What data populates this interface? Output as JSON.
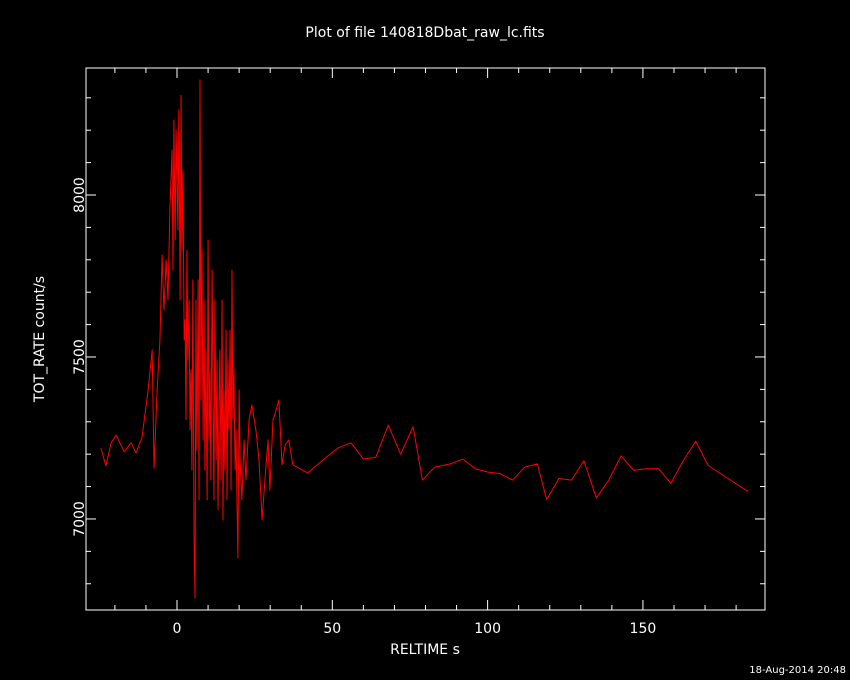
{
  "chart_data": {
    "type": "line",
    "title": "Plot of file 140818Dbat_raw_lc.fits",
    "x_label": "RELTIME  s",
    "y_label": "TOT_RATE  count/s",
    "timestamp": "18-Aug-2014 20:48",
    "xlim": [
      -29.3,
      189.3
    ],
    "ylim": [
      6719,
      8392
    ],
    "xticks": [
      0,
      50,
      100,
      150
    ],
    "yticks": [
      7000,
      7500,
      8000
    ],
    "xminor": [
      -20,
      -10,
      10,
      20,
      30,
      40,
      60,
      70,
      80,
      90,
      110,
      120,
      130,
      140,
      160,
      170,
      180
    ],
    "yminor": [
      6800,
      6900,
      7100,
      7200,
      7300,
      7400,
      7600,
      7700,
      7800,
      7900,
      8100,
      8200,
      8300
    ],
    "series": [
      {
        "name": "TOT_RATE",
        "color": "#ff0000",
        "x": [
          -24.5,
          -22.9,
          -21.2,
          -19.6,
          -17,
          -14.8,
          -13.2,
          -11.3,
          -9.3,
          -8,
          -7.4,
          -6.4,
          -5.5,
          -4.8,
          -4.2,
          -3.5,
          -2.9,
          -2.3,
          -1.6,
          -1.3,
          -1,
          -0.6,
          -0.3,
          0.3,
          0.6,
          1,
          1.3,
          1.6,
          1.9,
          2.3,
          2.6,
          2.9,
          3.2,
          3.5,
          3.9,
          4.2,
          4.5,
          4.8,
          5.1,
          5.5,
          5.8,
          6.1,
          6.4,
          6.8,
          7.1,
          7.4,
          7.7,
          8,
          8.4,
          8.7,
          9,
          9.3,
          9.7,
          10,
          10.3,
          10.6,
          10.9,
          11.3,
          11.6,
          11.9,
          12.2,
          12.6,
          12.9,
          13.2,
          13.5,
          13.8,
          14.2,
          14.5,
          14.8,
          15.1,
          15.4,
          15.8,
          16.1,
          16.4,
          16.7,
          17.1,
          17.4,
          17.7,
          18,
          18.3,
          18.7,
          19,
          19.3,
          19.6,
          20,
          20.3,
          20.9,
          21.6,
          22.2,
          23.2,
          24.1,
          25.4,
          26.4,
          27.4,
          28.3,
          29.3,
          29.9,
          30.9,
          31.9,
          32.8,
          33.8,
          34.8,
          36,
          37.3,
          42,
          48,
          52,
          56,
          60,
          64,
          68,
          72,
          76,
          79,
          83,
          88,
          92,
          96,
          100,
          104,
          108,
          112,
          116,
          119,
          123,
          127,
          131,
          135,
          139,
          143,
          147,
          151,
          155,
          159,
          163,
          167,
          171,
          175,
          183.8
        ],
        "values": [
          7219,
          7164,
          7235,
          7259,
          7207,
          7235,
          7204,
          7250,
          7398,
          7522,
          7157,
          7398,
          7552,
          7815,
          7645,
          7799,
          7676,
          7954,
          8139,
          7768,
          8231,
          7861,
          8200,
          7892,
          8262,
          7676,
          8308,
          7830,
          8077,
          7552,
          7614,
          7306,
          7830,
          7491,
          7676,
          7275,
          7460,
          7151,
          7738,
          6920,
          6756,
          7676,
          7213,
          7738,
          7059,
          8355,
          7367,
          7830,
          7244,
          7676,
          7151,
          7522,
          7059,
          7861,
          7244,
          7460,
          7120,
          7768,
          7367,
          7059,
          7676,
          7182,
          7491,
          7028,
          7306,
          7522,
          7120,
          7676,
          6997,
          7398,
          7151,
          7583,
          7059,
          7491,
          7275,
          7583,
          7089,
          7768,
          7306,
          7460,
          7151,
          7275,
          7059,
          6880,
          7398,
          7182,
          7059,
          7244,
          7120,
          7306,
          7352,
          7275,
          7182,
          6997,
          7120,
          7244,
          7089,
          7306,
          7336,
          7367,
          7167,
          7228,
          7244,
          7167,
          7142,
          7190,
          7220,
          7235,
          7185,
          7190,
          7290,
          7200,
          7285,
          7120,
          7160,
          7170,
          7185,
          7155,
          7145,
          7140,
          7120,
          7160,
          7170,
          7060,
          7125,
          7120,
          7180,
          7065,
          7120,
          7195,
          7150,
          7155,
          7155,
          7110,
          7180,
          7240,
          7165,
          7140,
          7085
        ]
      }
    ]
  }
}
